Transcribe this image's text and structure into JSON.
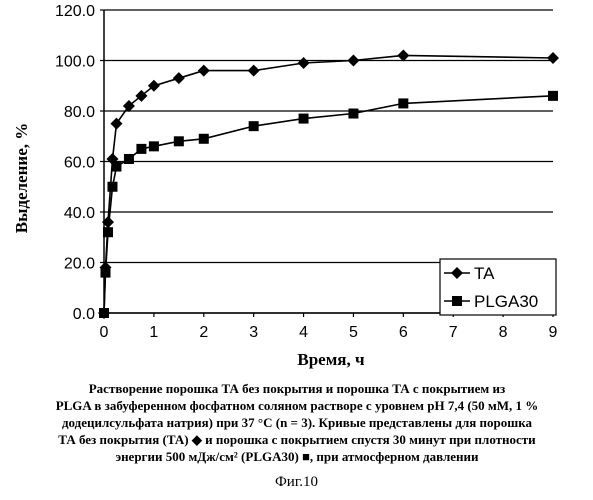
{
  "chart_data": {
    "type": "line",
    "title": "",
    "xlabel": "Время, ч",
    "ylabel": "Выделение, %",
    "xlim": [
      0,
      9
    ],
    "ylim": [
      0,
      120
    ],
    "x_ticks": [
      "0",
      "1",
      "2",
      "3",
      "4",
      "5",
      "6",
      "7",
      "8",
      "9"
    ],
    "y_ticks": [
      "0.0",
      "20.0",
      "40.0",
      "60.0",
      "80.0",
      "100.0",
      "120.0"
    ],
    "grid": "horizontal",
    "legend_position": "bottom-right",
    "series": [
      {
        "name": "TA",
        "marker": "diamond",
        "color": "#000000",
        "x": [
          0,
          0.03,
          0.08,
          0.17,
          0.25,
          0.5,
          0.75,
          1,
          1.5,
          2,
          3,
          4,
          5,
          6,
          9
        ],
        "y": [
          0,
          18,
          36,
          61,
          75,
          82,
          86,
          90,
          93,
          96,
          96,
          99,
          100,
          102,
          101
        ]
      },
      {
        "name": "PLGA30",
        "marker": "square",
        "color": "#000000",
        "x": [
          0,
          0.03,
          0.08,
          0.17,
          0.25,
          0.5,
          0.75,
          1,
          1.5,
          2,
          3,
          4,
          5,
          6,
          9
        ],
        "y": [
          0,
          16,
          32,
          50,
          58,
          61,
          65,
          66,
          68,
          69,
          74,
          77,
          79,
          83,
          86
        ]
      }
    ]
  },
  "caption": {
    "line1": "Растворение порошка ТА без покрытия и порошка ТА с покрытием из",
    "line2": "PLGA в забуференном фосфатном соляном растворе с уровнем pH 7,4 (50 мМ, 1 %",
    "line3": "додецилсульфата натрия) при 37 °С (n = 3). Кривые представлены для порошка",
    "line4": "ТА без покрытия (ТА) ◆ и порошка с покрытием спустя 30 минут при плотности",
    "line5": "энергии 500 мДж/см² (PLGA30) ■, при атмосферном давлении"
  },
  "figure_label": "Фиг.10"
}
